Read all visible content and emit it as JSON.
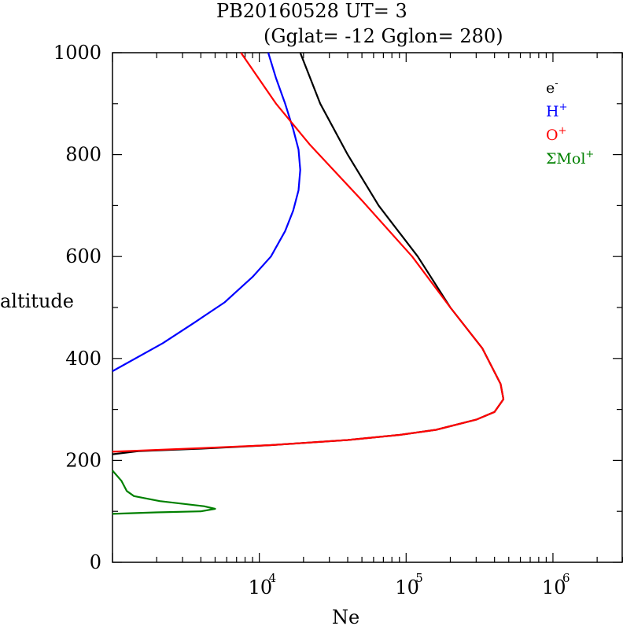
{
  "chart_data": {
    "type": "line",
    "title_line1": "PB20160528   UT=  3",
    "title_line2": "(Gglat= -12   Gglon=  280)",
    "xlabel": "Ne",
    "ylabel": "altitude",
    "x_scale": "log",
    "xlim": [
      1000,
      3000000
    ],
    "ylim": [
      0,
      1000
    ],
    "y_ticks": [
      "0",
      "200",
      "400",
      "600",
      "800",
      "1000"
    ],
    "x_ticks": [
      {
        "base": "10",
        "exp": "4",
        "value": 10000
      },
      {
        "base": "10",
        "exp": "5",
        "value": 100000
      },
      {
        "base": "10",
        "exp": "6",
        "value": 1000000
      }
    ],
    "legend_position": "top-right",
    "series": [
      {
        "name": "e",
        "sup": "-",
        "color": "#000000",
        "points": [
          [
            19000,
            1000
          ],
          [
            26000,
            900
          ],
          [
            40000,
            800
          ],
          [
            65000,
            700
          ],
          [
            120000,
            600
          ],
          [
            200000,
            500
          ],
          [
            330000,
            420
          ],
          [
            440000,
            350
          ],
          [
            460000,
            320
          ],
          [
            400000,
            295
          ],
          [
            300000,
            280
          ],
          [
            160000,
            260
          ],
          [
            90000,
            250
          ],
          [
            40000,
            240
          ],
          [
            12000,
            230
          ],
          [
            4000,
            223
          ],
          [
            1500,
            218
          ],
          [
            1000,
            212
          ]
        ]
      },
      {
        "name": "H",
        "sup": "+",
        "color": "#0000ff",
        "points": [
          [
            11500,
            1000
          ],
          [
            13000,
            950
          ],
          [
            15000,
            900
          ],
          [
            17000,
            850
          ],
          [
            18500,
            810
          ],
          [
            19000,
            770
          ],
          [
            18500,
            730
          ],
          [
            17000,
            690
          ],
          [
            15000,
            650
          ],
          [
            12000,
            600
          ],
          [
            9000,
            560
          ],
          [
            5800,
            510
          ],
          [
            3600,
            470
          ],
          [
            2200,
            430
          ],
          [
            1000,
            375
          ]
        ]
      },
      {
        "name": "O",
        "sup": "+",
        "color": "#ff0000",
        "points": [
          [
            7500,
            1000
          ],
          [
            13000,
            900
          ],
          [
            22000,
            820
          ],
          [
            50000,
            710
          ],
          [
            110000,
            600
          ],
          [
            200000,
            500
          ],
          [
            330000,
            420
          ],
          [
            440000,
            350
          ],
          [
            460000,
            320
          ],
          [
            400000,
            295
          ],
          [
            300000,
            280
          ],
          [
            160000,
            260
          ],
          [
            90000,
            250
          ],
          [
            40000,
            240
          ],
          [
            12000,
            230
          ],
          [
            4000,
            224
          ],
          [
            1000,
            217
          ]
        ]
      },
      {
        "name": "ΣMol",
        "sup": "+",
        "color": "#008000",
        "points": [
          [
            1000,
            180
          ],
          [
            1150,
            160
          ],
          [
            1250,
            140
          ],
          [
            1400,
            130
          ],
          [
            2100,
            120
          ],
          [
            4200,
            110
          ],
          [
            5000,
            105
          ],
          [
            4000,
            100
          ],
          [
            2000,
            98
          ],
          [
            1000,
            95
          ]
        ]
      }
    ]
  }
}
